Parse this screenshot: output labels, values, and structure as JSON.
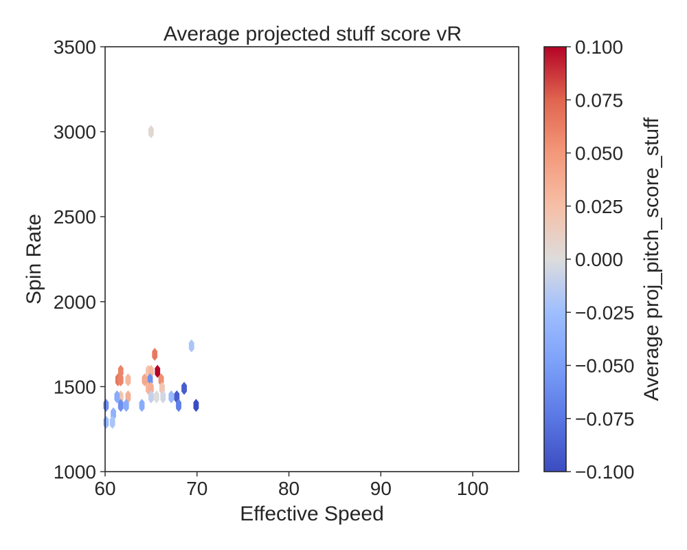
{
  "chart_data": {
    "type": "hexbin",
    "title": "Average projected stuff score vR",
    "xlabel": "Effective Speed",
    "ylabel": "Spin Rate",
    "xlim": [
      60,
      105
    ],
    "ylim": [
      1000,
      3500
    ],
    "x_ticks": [
      60,
      70,
      80,
      90,
      100
    ],
    "y_ticks": [
      1000,
      1500,
      2000,
      2500,
      3000,
      3500
    ],
    "colorbar": {
      "label": "Average proj_pitch_score_stuff",
      "colormap": "coolwarm",
      "vmin": -0.1,
      "vmax": 0.1,
      "ticks": [
        "0.100",
        "0.075",
        "0.050",
        "0.025",
        "0.000",
        "−0.025",
        "−0.050",
        "−0.075",
        "−0.100"
      ],
      "tick_values": [
        0.1,
        0.075,
        0.05,
        0.025,
        0.0,
        -0.025,
        -0.05,
        -0.075,
        -0.1
      ]
    },
    "grid": false,
    "points": [
      {
        "x": 65.0,
        "y": 3000,
        "value": 0.005
      },
      {
        "x": 69.4,
        "y": 1740,
        "value": -0.02
      },
      {
        "x": 65.4,
        "y": 1690,
        "value": 0.065
      },
      {
        "x": 61.4,
        "y": 1540,
        "value": 0.065
      },
      {
        "x": 61.7,
        "y": 1590,
        "value": 0.06
      },
      {
        "x": 61.7,
        "y": 1540,
        "value": 0.06
      },
      {
        "x": 62.5,
        "y": 1540,
        "value": 0.03
      },
      {
        "x": 64.3,
        "y": 1540,
        "value": 0.04
      },
      {
        "x": 64.7,
        "y": 1590,
        "value": 0.02
      },
      {
        "x": 65.0,
        "y": 1590,
        "value": 0.03
      },
      {
        "x": 65.7,
        "y": 1590,
        "value": 0.1
      },
      {
        "x": 66.1,
        "y": 1540,
        "value": 0.055
      },
      {
        "x": 64.9,
        "y": 1540,
        "value": -0.06
      },
      {
        "x": 61.7,
        "y": 1440,
        "value": 0.02
      },
      {
        "x": 62.5,
        "y": 1440,
        "value": 0.035
      },
      {
        "x": 64.7,
        "y": 1490,
        "value": 0.03
      },
      {
        "x": 65.0,
        "y": 1490,
        "value": 0.035
      },
      {
        "x": 66.2,
        "y": 1490,
        "value": 0.02
      },
      {
        "x": 61.3,
        "y": 1440,
        "value": -0.04
      },
      {
        "x": 65.0,
        "y": 1440,
        "value": -0.01
      },
      {
        "x": 65.6,
        "y": 1440,
        "value": 0.0
      },
      {
        "x": 66.3,
        "y": 1440,
        "value": -0.005
      },
      {
        "x": 67.2,
        "y": 1440,
        "value": -0.03
      },
      {
        "x": 67.8,
        "y": 1440,
        "value": -0.09
      },
      {
        "x": 68.6,
        "y": 1490,
        "value": -0.09
      },
      {
        "x": 60.1,
        "y": 1390,
        "value": -0.06
      },
      {
        "x": 61.7,
        "y": 1390,
        "value": -0.06
      },
      {
        "x": 62.3,
        "y": 1390,
        "value": -0.04
      },
      {
        "x": 64.0,
        "y": 1390,
        "value": -0.04
      },
      {
        "x": 68.0,
        "y": 1390,
        "value": -0.07
      },
      {
        "x": 69.9,
        "y": 1390,
        "value": -0.1
      },
      {
        "x": 60.9,
        "y": 1340,
        "value": -0.035
      },
      {
        "x": 60.1,
        "y": 1290,
        "value": -0.03
      },
      {
        "x": 60.8,
        "y": 1290,
        "value": -0.02
      }
    ]
  }
}
